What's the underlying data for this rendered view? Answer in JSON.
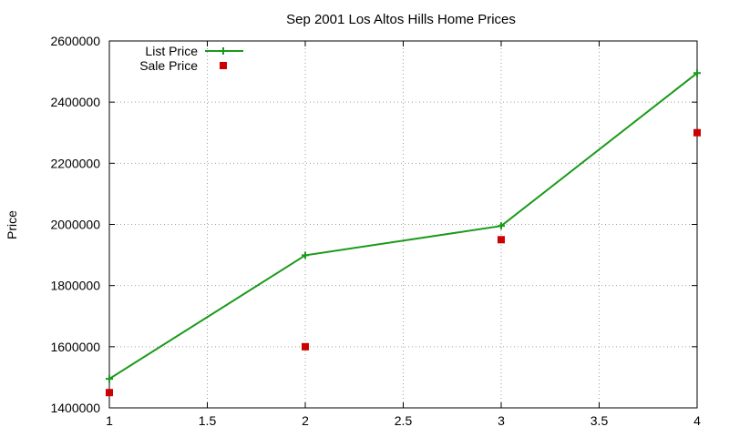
{
  "chart_data": {
    "type": "line",
    "title": "Sep 2001 Los Altos Hills Home Prices",
    "xlabel": "",
    "ylabel": "Price",
    "xlim": [
      1,
      4
    ],
    "ylim": [
      1400000,
      2600000
    ],
    "xticks": [
      "1",
      "1.5",
      "2",
      "2.5",
      "3",
      "3.5",
      "4"
    ],
    "xtick_values": [
      1,
      1.5,
      2,
      2.5,
      3,
      3.5,
      4
    ],
    "yticks": [
      "1400000",
      "1600000",
      "1800000",
      "2000000",
      "2200000",
      "2400000",
      "2600000"
    ],
    "ytick_values": [
      1400000,
      1600000,
      1800000,
      2000000,
      2200000,
      2400000,
      2600000
    ],
    "grid": true,
    "legend_position": "top-left",
    "series": [
      {
        "name": "List Price",
        "style": "linespoints",
        "marker": "plus",
        "color": "#1a9a1a",
        "x": [
          1,
          2,
          3,
          4
        ],
        "y": [
          1495000,
          1899000,
          1995000,
          2495000
        ]
      },
      {
        "name": "Sale Price",
        "style": "points",
        "marker": "square",
        "color": "#cc0000",
        "x": [
          1,
          2,
          3,
          4
        ],
        "y": [
          1450000,
          1600000,
          1950000,
          2300000
        ]
      }
    ]
  }
}
